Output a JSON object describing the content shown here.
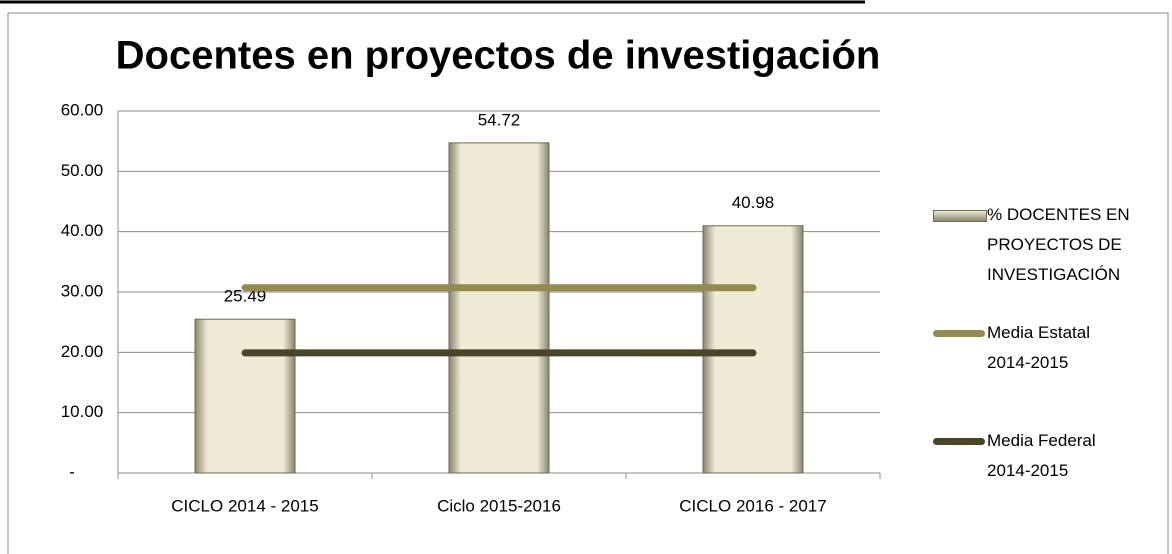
{
  "chart_data": {
    "type": "bar",
    "title": "Docentes en proyectos de investigación",
    "categories": [
      "CICLO 2014 - 2015",
      "Ciclo 2015-2016",
      "CICLO 2016 - 2017"
    ],
    "series": [
      {
        "name": "% DOCENTES EN PROYECTOS DE INVESTIGACIÓN",
        "type": "bar",
        "color": "#eeead6",
        "values": [
          25.49,
          54.72,
          40.98
        ]
      },
      {
        "name": "Media Estatal 2014-2015",
        "type": "line",
        "color": "#948a54",
        "values": [
          30.7,
          30.7,
          30.7
        ]
      },
      {
        "name": "Media Federal 2014-2015",
        "type": "line",
        "color": "#4a452a",
        "values": [
          19.9,
          19.9,
          19.9
        ]
      }
    ],
    "ylim": [
      0,
      60
    ],
    "yticks": [
      {
        "value": 0,
        "label": "-"
      },
      {
        "value": 10,
        "label": "10.00"
      },
      {
        "value": 20,
        "label": "20.00"
      },
      {
        "value": 30,
        "label": "30.00"
      },
      {
        "value": 40,
        "label": "40.00"
      },
      {
        "value": 50,
        "label": "50.00"
      },
      {
        "value": 60,
        "label": "60.00"
      }
    ],
    "grid": true,
    "legend": "right"
  }
}
